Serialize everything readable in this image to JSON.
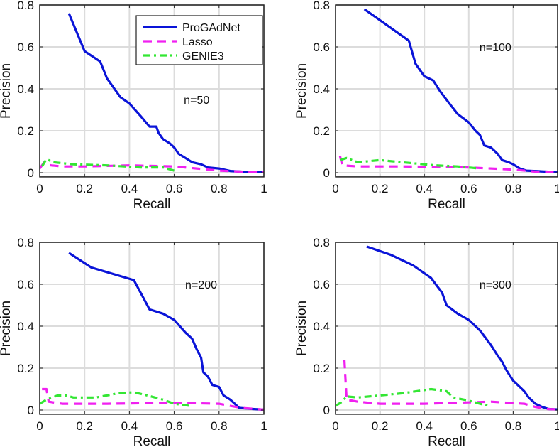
{
  "chart_data": [
    {
      "type": "line",
      "annotation": "n=50",
      "xlabel": "Recall",
      "ylabel": "Precision",
      "xlim": [
        0,
        1
      ],
      "ylim": [
        -0.02,
        0.8
      ],
      "xticks": [
        "0",
        "0.2",
        "0.4",
        "0.6",
        "0.8",
        "1"
      ],
      "yticks": [
        "0",
        "0.2",
        "0.4",
        "0.6",
        "0.8"
      ],
      "grid": true,
      "legend": {
        "placement": "top-right",
        "entries": [
          "ProGAdNet",
          "Lasso",
          "GENIE3"
        ]
      },
      "series": [
        {
          "name": "ProGAdNet",
          "color": "#0a14d8",
          "style": "solid",
          "points": [
            [
              0.13,
              0.76
            ],
            [
              0.2,
              0.58
            ],
            [
              0.27,
              0.53
            ],
            [
              0.3,
              0.45
            ],
            [
              0.36,
              0.36
            ],
            [
              0.4,
              0.33
            ],
            [
              0.45,
              0.27
            ],
            [
              0.49,
              0.22
            ],
            [
              0.52,
              0.22
            ],
            [
              0.53,
              0.19
            ],
            [
              0.55,
              0.16
            ],
            [
              0.58,
              0.14
            ],
            [
              0.6,
              0.12
            ],
            [
              0.62,
              0.09
            ],
            [
              0.65,
              0.07
            ],
            [
              0.68,
              0.05
            ],
            [
              0.72,
              0.04
            ],
            [
              0.75,
              0.025
            ],
            [
              0.8,
              0.02
            ],
            [
              0.85,
              0.008
            ],
            [
              0.9,
              0.005
            ],
            [
              1,
              0.002
            ]
          ]
        },
        {
          "name": "Lasso",
          "color": "#f020f0",
          "style": "dash",
          "points": [
            [
              0,
              0.02
            ],
            [
              0.02,
              0.05
            ],
            [
              0.05,
              0.035
            ],
            [
              0.1,
              0.03
            ],
            [
              0.2,
              0.03
            ],
            [
              0.4,
              0.035
            ],
            [
              0.6,
              0.03
            ],
            [
              0.7,
              0.02
            ],
            [
              0.8,
              0.01
            ],
            [
              0.9,
              0.005
            ],
            [
              1,
              0.002
            ]
          ]
        },
        {
          "name": "GENIE3",
          "color": "#33e633",
          "style": "dashdot",
          "points": [
            [
              0.01,
              0.03
            ],
            [
              0.03,
              0.065
            ],
            [
              0.06,
              0.05
            ],
            [
              0.15,
              0.04
            ],
            [
              0.3,
              0.035
            ],
            [
              0.45,
              0.025
            ],
            [
              0.55,
              0.025
            ],
            [
              0.6,
              0.01
            ]
          ]
        }
      ]
    },
    {
      "type": "line",
      "annotation": "n=100",
      "xlabel": "Recall",
      "ylabel": "Precision",
      "xlim": [
        0,
        1
      ],
      "ylim": [
        -0.02,
        0.8
      ],
      "xticks": [
        "0",
        "0.2",
        "0.4",
        "0.6",
        "0.8",
        "1"
      ],
      "yticks": [
        "0",
        "0.2",
        "0.4",
        "0.6",
        "0.8"
      ],
      "grid": true,
      "series": [
        {
          "name": "ProGAdNet",
          "color": "#0a14d8",
          "style": "solid",
          "points": [
            [
              0.13,
              0.78
            ],
            [
              0.33,
              0.63
            ],
            [
              0.36,
              0.52
            ],
            [
              0.4,
              0.46
            ],
            [
              0.44,
              0.44
            ],
            [
              0.47,
              0.39
            ],
            [
              0.52,
              0.32
            ],
            [
              0.55,
              0.28
            ],
            [
              0.6,
              0.24
            ],
            [
              0.63,
              0.2
            ],
            [
              0.65,
              0.18
            ],
            [
              0.67,
              0.13
            ],
            [
              0.7,
              0.12
            ],
            [
              0.73,
              0.09
            ],
            [
              0.75,
              0.06
            ],
            [
              0.78,
              0.05
            ],
            [
              0.8,
              0.04
            ],
            [
              0.83,
              0.02
            ],
            [
              0.86,
              0.01
            ],
            [
              0.95,
              0.005
            ],
            [
              1,
              0.002
            ]
          ]
        },
        {
          "name": "Lasso",
          "color": "#f020f0",
          "style": "dash",
          "points": [
            [
              0.02,
              0.08
            ],
            [
              0.03,
              0.035
            ],
            [
              0.1,
              0.03
            ],
            [
              0.3,
              0.03
            ],
            [
              0.6,
              0.025
            ],
            [
              0.8,
              0.015
            ],
            [
              0.9,
              0.005
            ],
            [
              1,
              0.002
            ]
          ]
        },
        {
          "name": "GENIE3",
          "color": "#33e633",
          "style": "dashdot",
          "points": [
            [
              0.02,
              0.06
            ],
            [
              0.05,
              0.07
            ],
            [
              0.1,
              0.05
            ],
            [
              0.2,
              0.06
            ],
            [
              0.3,
              0.05
            ],
            [
              0.45,
              0.035
            ],
            [
              0.55,
              0.03
            ],
            [
              0.65,
              0.02
            ]
          ]
        }
      ]
    },
    {
      "type": "line",
      "annotation": "n=200",
      "xlabel": "Recall",
      "ylabel": "Precision",
      "xlim": [
        0,
        1
      ],
      "ylim": [
        -0.02,
        0.8
      ],
      "xticks": [
        "0",
        "0.2",
        "0.4",
        "0.6",
        "0.8",
        "1"
      ],
      "yticks": [
        "0",
        "0.2",
        "0.4",
        "0.6",
        "0.8"
      ],
      "grid": true,
      "series": [
        {
          "name": "ProGAdNet",
          "color": "#0a14d8",
          "style": "solid",
          "points": [
            [
              0.13,
              0.75
            ],
            [
              0.23,
              0.68
            ],
            [
              0.42,
              0.62
            ],
            [
              0.49,
              0.48
            ],
            [
              0.55,
              0.46
            ],
            [
              0.6,
              0.43
            ],
            [
              0.65,
              0.37
            ],
            [
              0.68,
              0.34
            ],
            [
              0.7,
              0.29
            ],
            [
              0.72,
              0.25
            ],
            [
              0.73,
              0.18
            ],
            [
              0.75,
              0.16
            ],
            [
              0.77,
              0.12
            ],
            [
              0.8,
              0.11
            ],
            [
              0.82,
              0.07
            ],
            [
              0.85,
              0.05
            ],
            [
              0.87,
              0.03
            ],
            [
              0.89,
              0.01
            ],
            [
              0.95,
              0.005
            ],
            [
              1,
              0.002
            ]
          ]
        },
        {
          "name": "Lasso",
          "color": "#f020f0",
          "style": "dash",
          "points": [
            [
              0.01,
              0.1
            ],
            [
              0.03,
              0.1
            ],
            [
              0.04,
              0.04
            ],
            [
              0.1,
              0.03
            ],
            [
              0.3,
              0.03
            ],
            [
              0.6,
              0.035
            ],
            [
              0.8,
              0.03
            ],
            [
              0.9,
              0.01
            ],
            [
              1,
              0.002
            ]
          ]
        },
        {
          "name": "GENIE3",
          "color": "#33e633",
          "style": "dashdot",
          "points": [
            [
              0,
              0.03
            ],
            [
              0.03,
              0.05
            ],
            [
              0.08,
              0.07
            ],
            [
              0.12,
              0.07
            ],
            [
              0.15,
              0.06
            ],
            [
              0.25,
              0.06
            ],
            [
              0.35,
              0.08
            ],
            [
              0.42,
              0.085
            ],
            [
              0.48,
              0.07
            ],
            [
              0.55,
              0.05
            ],
            [
              0.6,
              0.03
            ],
            [
              0.67,
              0.02
            ]
          ]
        }
      ]
    },
    {
      "type": "line",
      "annotation": "n=300",
      "xlabel": "Recall",
      "ylabel": "Precision",
      "xlim": [
        0,
        1
      ],
      "ylim": [
        -0.02,
        0.8
      ],
      "xticks": [
        "0",
        "0.2",
        "0.4",
        "0.6",
        "0.8",
        "1"
      ],
      "yticks": [
        "0",
        "0.2",
        "0.4",
        "0.6",
        "0.8"
      ],
      "grid": true,
      "series": [
        {
          "name": "ProGAdNet",
          "color": "#0a14d8",
          "style": "solid",
          "points": [
            [
              0.14,
              0.78
            ],
            [
              0.25,
              0.74
            ],
            [
              0.35,
              0.69
            ],
            [
              0.43,
              0.63
            ],
            [
              0.48,
              0.56
            ],
            [
              0.5,
              0.5
            ],
            [
              0.55,
              0.46
            ],
            [
              0.6,
              0.43
            ],
            [
              0.65,
              0.38
            ],
            [
              0.7,
              0.31
            ],
            [
              0.73,
              0.26
            ],
            [
              0.75,
              0.23
            ],
            [
              0.77,
              0.19
            ],
            [
              0.8,
              0.14
            ],
            [
              0.82,
              0.12
            ],
            [
              0.85,
              0.09
            ],
            [
              0.87,
              0.06
            ],
            [
              0.9,
              0.03
            ],
            [
              0.93,
              0.015
            ],
            [
              0.96,
              0.005
            ],
            [
              1,
              0.003
            ]
          ]
        },
        {
          "name": "Lasso",
          "color": "#f020f0",
          "style": "dash",
          "points": [
            [
              0.04,
              0.24
            ],
            [
              0.05,
              0.05
            ],
            [
              0.1,
              0.04
            ],
            [
              0.2,
              0.03
            ],
            [
              0.4,
              0.03
            ],
            [
              0.7,
              0.04
            ],
            [
              0.85,
              0.03
            ],
            [
              0.9,
              0.015
            ],
            [
              0.95,
              0.005
            ],
            [
              1,
              0.003
            ]
          ]
        },
        {
          "name": "GENIE3",
          "color": "#33e633",
          "style": "dashdot",
          "points": [
            [
              0,
              0.02
            ],
            [
              0.03,
              0.04
            ],
            [
              0.05,
              0.065
            ],
            [
              0.1,
              0.06
            ],
            [
              0.2,
              0.07
            ],
            [
              0.3,
              0.08
            ],
            [
              0.43,
              0.1
            ],
            [
              0.5,
              0.09
            ],
            [
              0.53,
              0.06
            ],
            [
              0.6,
              0.045
            ],
            [
              0.65,
              0.03
            ],
            [
              0.69,
              0.02
            ]
          ]
        }
      ]
    }
  ]
}
